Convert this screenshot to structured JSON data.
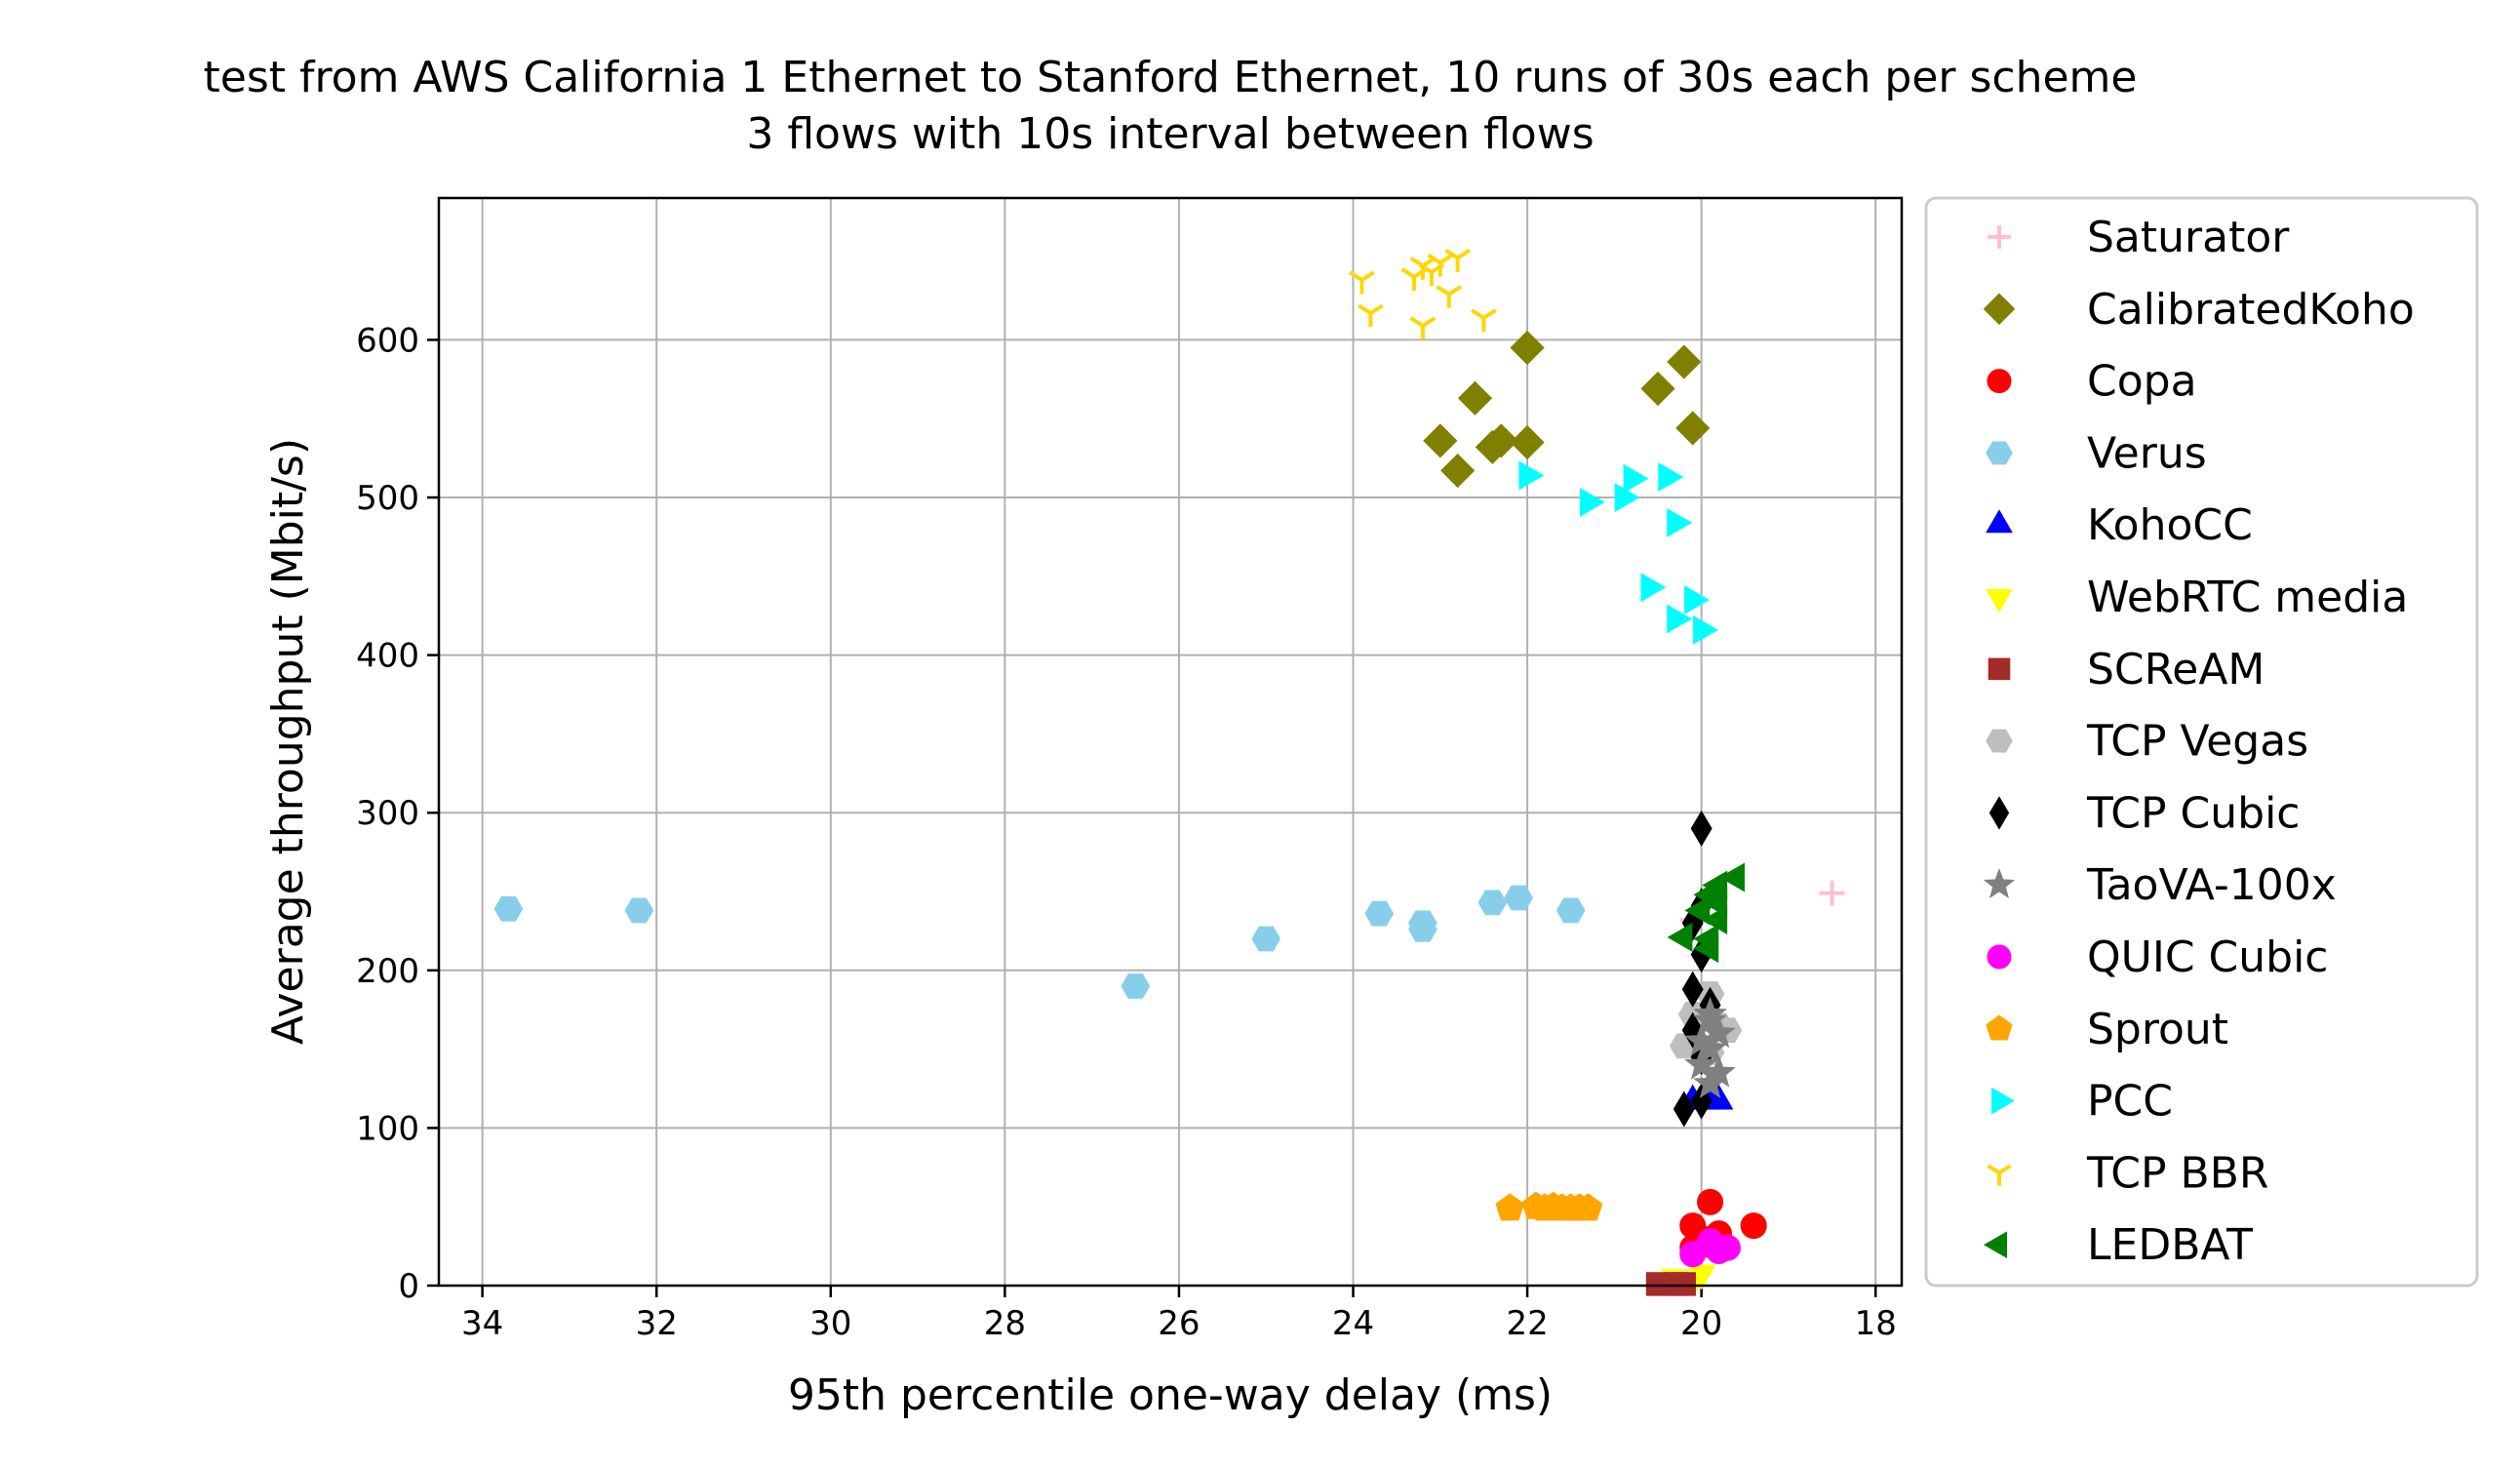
{
  "chart_data": {
    "type": "scatter",
    "title": "test from AWS California 1 Ethernet to Stanford Ethernet, 10 runs of 30s each per scheme",
    "subtitle": "3 flows with 10s interval between flows",
    "xlabel": "95th percentile one-way delay (ms)",
    "ylabel": "Average throughput (Mbit/s)",
    "xlim": [
      34.5,
      17.7
    ],
    "ylim": [
      0,
      690
    ],
    "x_inverted": true,
    "grid": true,
    "legend_position": "outside-right",
    "xticks": [
      34,
      32,
      30,
      28,
      26,
      24,
      22,
      20,
      18
    ],
    "yticks": [
      0,
      100,
      200,
      300,
      400,
      500,
      600
    ],
    "series": [
      {
        "name": "Saturator",
        "marker": "plus",
        "color": "#ffc0cb",
        "points": [
          [
            18.5,
            249
          ],
          [
            20.1,
            232
          ]
        ]
      },
      {
        "name": "CalibratedKoho",
        "marker": "diamond",
        "color": "#808000",
        "points": [
          [
            22.0,
            595
          ],
          [
            22.6,
            563
          ],
          [
            23.0,
            536
          ],
          [
            22.8,
            517
          ],
          [
            22.4,
            532
          ],
          [
            22.3,
            536
          ],
          [
            22.0,
            535
          ],
          [
            20.5,
            569
          ],
          [
            20.2,
            586
          ],
          [
            20.1,
            544
          ]
        ]
      },
      {
        "name": "Copa",
        "marker": "circle",
        "color": "#ff0000",
        "points": [
          [
            19.9,
            53
          ],
          [
            20.1,
            38
          ],
          [
            20.0,
            30
          ],
          [
            19.4,
            38
          ],
          [
            19.8,
            33
          ],
          [
            19.9,
            26
          ],
          [
            20.1,
            24
          ]
        ]
      },
      {
        "name": "Verus",
        "marker": "hexagon",
        "color": "#87ceeb",
        "points": [
          [
            33.7,
            239
          ],
          [
            32.2,
            238
          ],
          [
            26.5,
            190
          ],
          [
            25.0,
            220
          ],
          [
            23.7,
            236
          ],
          [
            23.2,
            226
          ],
          [
            23.2,
            230
          ],
          [
            22.4,
            243
          ],
          [
            22.1,
            246
          ],
          [
            21.5,
            238
          ]
        ]
      },
      {
        "name": "KohoCC",
        "marker": "triangle-up",
        "color": "#0000ff",
        "points": [
          [
            19.8,
            117
          ],
          [
            20.1,
            117
          ],
          [
            19.9,
            120
          ]
        ]
      },
      {
        "name": "WebRTC media",
        "marker": "triangle-down",
        "color": "#ffff00",
        "points": [
          [
            20.3,
            5
          ],
          [
            20.0,
            8
          ],
          [
            20.1,
            3
          ]
        ]
      },
      {
        "name": "SCReAM",
        "marker": "square",
        "color": "#a52a2a",
        "points": [
          [
            20.5,
            1
          ],
          [
            20.3,
            1
          ],
          [
            20.2,
            1
          ]
        ]
      },
      {
        "name": "TCP Vegas",
        "marker": "hexagon",
        "color": "#bebebe",
        "points": [
          [
            19.9,
            185
          ],
          [
            20.2,
            152
          ],
          [
            19.7,
            162
          ],
          [
            19.9,
            148
          ],
          [
            20.1,
            172
          ],
          [
            19.8,
            165
          ]
        ]
      },
      {
        "name": "TCP Cubic",
        "marker": "thin-diamond",
        "color": "#000000",
        "points": [
          [
            20.0,
            290
          ],
          [
            20.0,
            241
          ],
          [
            20.1,
            230
          ],
          [
            20.0,
            210
          ],
          [
            20.1,
            188
          ],
          [
            19.9,
            178
          ],
          [
            20.1,
            162
          ],
          [
            20.0,
            145
          ],
          [
            20.0,
            117
          ],
          [
            20.2,
            112
          ]
        ]
      },
      {
        "name": "TaoVA-100x",
        "marker": "star",
        "color": "#808080",
        "points": [
          [
            19.9,
            168
          ],
          [
            19.8,
            160
          ],
          [
            19.9,
            150
          ],
          [
            20.0,
            140
          ],
          [
            19.8,
            135
          ],
          [
            19.9,
            128
          ],
          [
            20.0,
            155
          ],
          [
            19.9,
            172
          ]
        ]
      },
      {
        "name": "QUIC Cubic",
        "marker": "circle",
        "color": "#ff00ff",
        "points": [
          [
            19.7,
            24
          ],
          [
            19.8,
            22
          ],
          [
            20.1,
            20
          ],
          [
            19.9,
            28
          ]
        ]
      },
      {
        "name": "Sprout",
        "marker": "pentagon",
        "color": "#ffa500",
        "points": [
          [
            22.2,
            49
          ],
          [
            21.8,
            49
          ],
          [
            21.6,
            49
          ],
          [
            21.5,
            49
          ],
          [
            21.3,
            49
          ],
          [
            21.7,
            50
          ],
          [
            21.9,
            50
          ],
          [
            21.4,
            49
          ]
        ]
      },
      {
        "name": "PCC",
        "marker": "triangle-right",
        "color": "#00ffff",
        "points": [
          [
            22.0,
            514
          ],
          [
            21.3,
            497
          ],
          [
            20.8,
            512
          ],
          [
            20.4,
            513
          ],
          [
            20.9,
            500
          ],
          [
            20.3,
            484
          ],
          [
            20.6,
            443
          ],
          [
            20.1,
            435
          ],
          [
            20.3,
            423
          ],
          [
            20.0,
            416
          ]
        ]
      },
      {
        "name": "TCP BBR",
        "marker": "tri-down",
        "color": "#ffd700",
        "points": [
          [
            23.9,
            638
          ],
          [
            23.8,
            617
          ],
          [
            23.3,
            640
          ],
          [
            23.2,
            647
          ],
          [
            23.0,
            649
          ],
          [
            22.8,
            652
          ],
          [
            23.2,
            609
          ],
          [
            22.9,
            629
          ],
          [
            22.5,
            614
          ],
          [
            23.1,
            643
          ]
        ]
      },
      {
        "name": "LEDBAT",
        "marker": "triangle-left",
        "color": "#008000",
        "points": [
          [
            19.6,
            259
          ],
          [
            19.8,
            254
          ],
          [
            19.9,
            248
          ],
          [
            20.0,
            238
          ],
          [
            20.2,
            221
          ],
          [
            19.9,
            220
          ],
          [
            19.8,
            232
          ],
          [
            19.8,
            243
          ],
          [
            19.9,
            214
          ]
        ]
      }
    ]
  }
}
